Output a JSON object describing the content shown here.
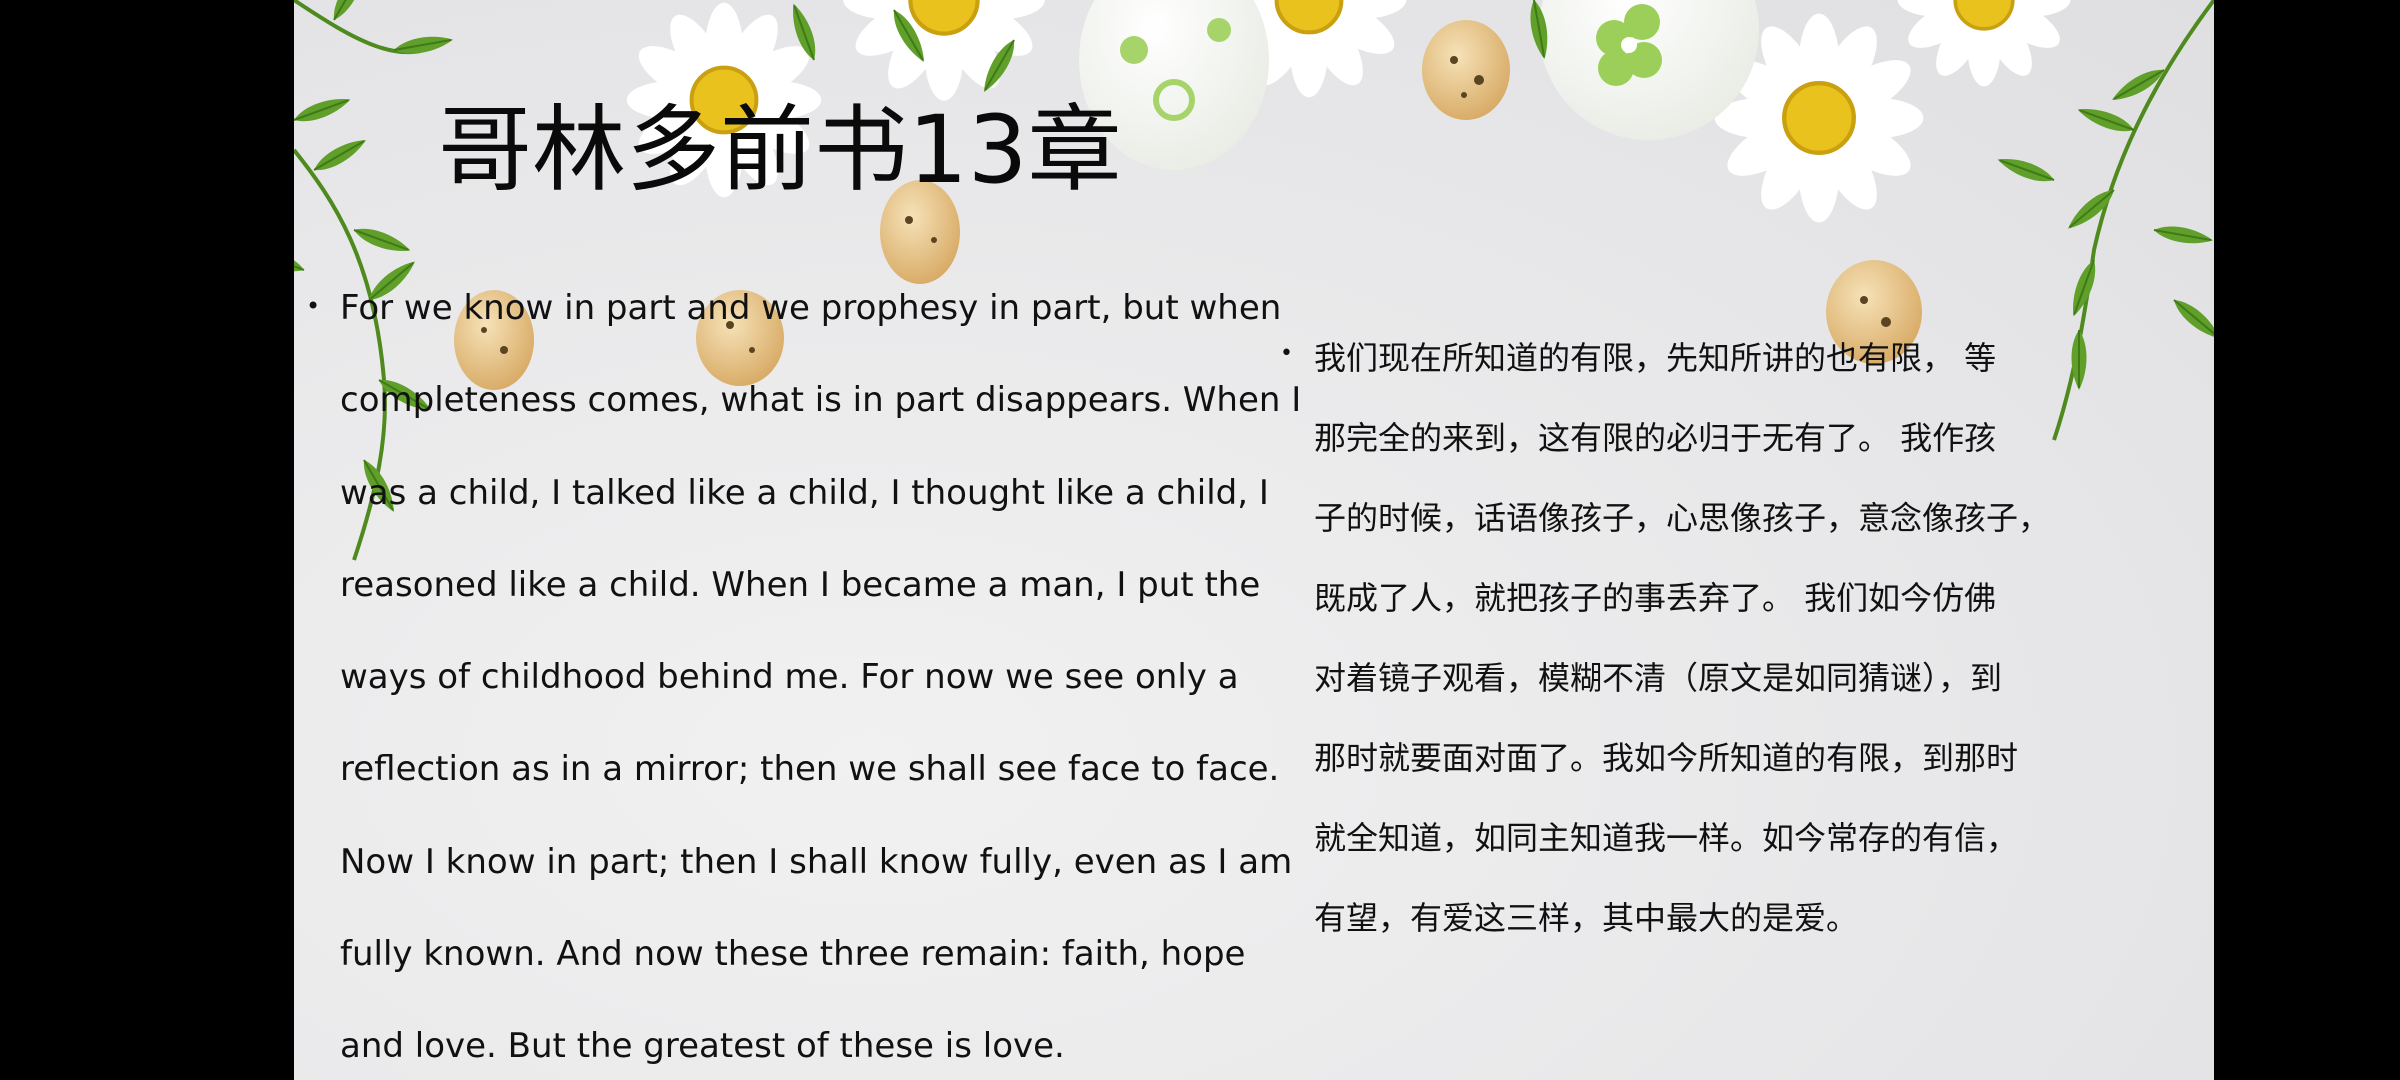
{
  "slide": {
    "title": "哥林多前书13章",
    "english_text": "For we know in part and we prophesy in part, but when\ncompleteness comes, what is in part disappears. When I\nwas a child, I talked like a child, I thought like a child, I\nreasoned like a child. When I became a man, I put the\nways of childhood behind me. For now we see only a\nreflection as in a mirror; then we shall see face to face.\nNow I know in part; then I shall know fully, even as I am\nfully known. And now these three remain: faith, hope\nand love. But the greatest of these is love.",
    "chinese_text": "我们现在所知道的有限，先知所讲的也有限， 等\n那完全的来到，这有限的必归于无有了。 我作孩\n子的时候，话语像孩子，心思像孩子，意念像孩子，\n既成了人，就把孩子的事丢弃了。 我们如今仿佛\n对着镜子观看，模糊不清（原文是如同猜谜），到\n那时就要面对面了。我如今所知道的有限，到那时\n就全知道，如同主知道我一样。如今常存的有信，\n有望，有爱这三样，其中最大的是爱。"
  },
  "background": {
    "decoration": [
      "daisy-icon",
      "leaf-icon",
      "quail-egg-icon",
      "painted-egg-icon"
    ],
    "leaf_color": "#5f9f2a",
    "daisy_center_color": "#e9c21e",
    "egg_color": "#e2b86f"
  }
}
